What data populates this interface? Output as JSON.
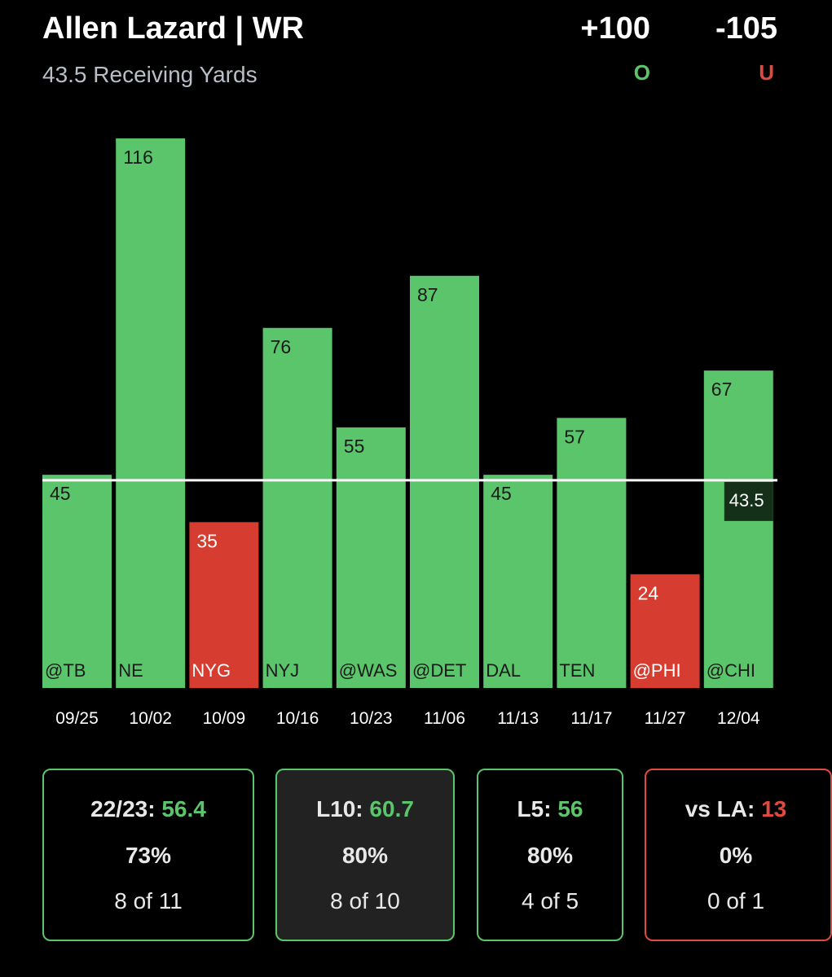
{
  "header": {
    "title": "Allen Lazard | WR",
    "subtitle": "43.5 Receiving Yards",
    "over_odds": "+100",
    "under_odds": "-105",
    "over_label": "O",
    "under_label": "U"
  },
  "colors": {
    "over": "#5ac56a",
    "under": "#d63c30",
    "line": "#ffffff"
  },
  "chart_data": {
    "type": "bar",
    "categories": [
      "09/25",
      "10/02",
      "10/09",
      "10/16",
      "10/23",
      "11/06",
      "11/13",
      "11/17",
      "11/27",
      "12/04"
    ],
    "opponents": [
      "@TB",
      "NE",
      "NYG",
      "NYJ",
      "@WAS",
      "@DET",
      "DAL",
      "TEN",
      "@PHI",
      "@CHI"
    ],
    "values": [
      45,
      116,
      35,
      76,
      55,
      87,
      45,
      57,
      24,
      67
    ],
    "line": 43.5,
    "line_label": "43.5",
    "ylim": [
      0,
      130
    ],
    "grid": false
  },
  "cards": [
    {
      "label": "22/23:",
      "value": "56.4",
      "pct": "73%",
      "record": "8 of 11",
      "tone": "green",
      "active": false
    },
    {
      "label": "L10:",
      "value": "60.7",
      "pct": "80%",
      "record": "8 of 10",
      "tone": "green",
      "active": true
    },
    {
      "label": "L5:",
      "value": "56",
      "pct": "80%",
      "record": "4 of 5",
      "tone": "green",
      "active": false
    },
    {
      "label": "vs LA:",
      "value": "13",
      "pct": "0%",
      "record": "0 of 1",
      "tone": "red",
      "active": false
    }
  ]
}
